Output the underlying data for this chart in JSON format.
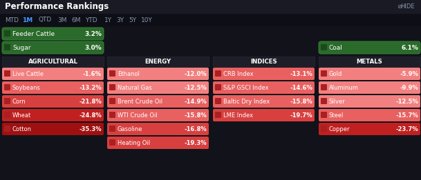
{
  "title": "Performance Rankings",
  "tabs": [
    "MTD",
    "1M",
    "QTD",
    "3M",
    "6M",
    "YTD",
    "1Y",
    "3Y",
    "5Y",
    "10Y"
  ],
  "active_tab": "1M",
  "top_green_col0": [
    {
      "label": "Feeder Cattle",
      "value": "3.2%"
    },
    {
      "label": "Sugar",
      "value": "3.0%"
    }
  ],
  "top_green_col3": [
    {
      "label": "Coal",
      "value": "6.1%"
    }
  ],
  "sections": [
    {
      "title": "AGRICULTURAL",
      "col": 0,
      "items": [
        {
          "label": "Live Cattle",
          "value": "-1.6%"
        },
        {
          "label": "Soybeans",
          "value": "-13.2%"
        },
        {
          "label": "Corn",
          "value": "-21.8%"
        },
        {
          "label": "Wheat",
          "value": "-24.8%"
        },
        {
          "label": "Cotton",
          "value": "-35.3%"
        }
      ]
    },
    {
      "title": "ENERGY",
      "col": 1,
      "items": [
        {
          "label": "Ethanol",
          "value": "-12.0%"
        },
        {
          "label": "Natural Gas",
          "value": "-12.5%"
        },
        {
          "label": "Brent Crude Oil",
          "value": "-14.9%"
        },
        {
          "label": "WTI Crude Oil",
          "value": "-15.8%"
        },
        {
          "label": "Gasoline",
          "value": "-16.8%"
        },
        {
          "label": "Heating Oil",
          "value": "-19.3%"
        }
      ]
    },
    {
      "title": "INDICES",
      "col": 2,
      "items": [
        {
          "label": "CRB Index",
          "value": "-13.1%"
        },
        {
          "label": "S&P GSCI Index",
          "value": "-14.6%"
        },
        {
          "label": "Baltic Dry Index",
          "value": "-15.8%"
        },
        {
          "label": "LME Index",
          "value": "-19.7%"
        }
      ]
    },
    {
      "title": "METALS",
      "col": 3,
      "items": [
        {
          "label": "Gold",
          "value": "-5.9%"
        },
        {
          "label": "Aluminum",
          "value": "-9.9%"
        },
        {
          "label": "Silver",
          "value": "-12.5%"
        },
        {
          "label": "Steel",
          "value": "-15.7%"
        },
        {
          "label": "Copper",
          "value": "-23.7%"
        }
      ]
    }
  ],
  "bg_color": "#12121a",
  "header_bg": "#1a1a24",
  "tab_bg": "#0e0e16",
  "green_fill": "#2a6a2a",
  "green_icon": "#1a4a1a",
  "green_border": "#3a8a3a",
  "section_hdr_bg": "#1e1e28",
  "red_colors": {
    "low": "#f28080",
    "mid": "#e86060",
    "high": "#d84040",
    "vhigh": "#c02020",
    "xhigh": "#a01010"
  },
  "red_icon": "#aa2020",
  "text_white": "#ffffff",
  "text_dark": "#200000",
  "text_gray": "#8899aa",
  "text_blue": "#4499ff"
}
